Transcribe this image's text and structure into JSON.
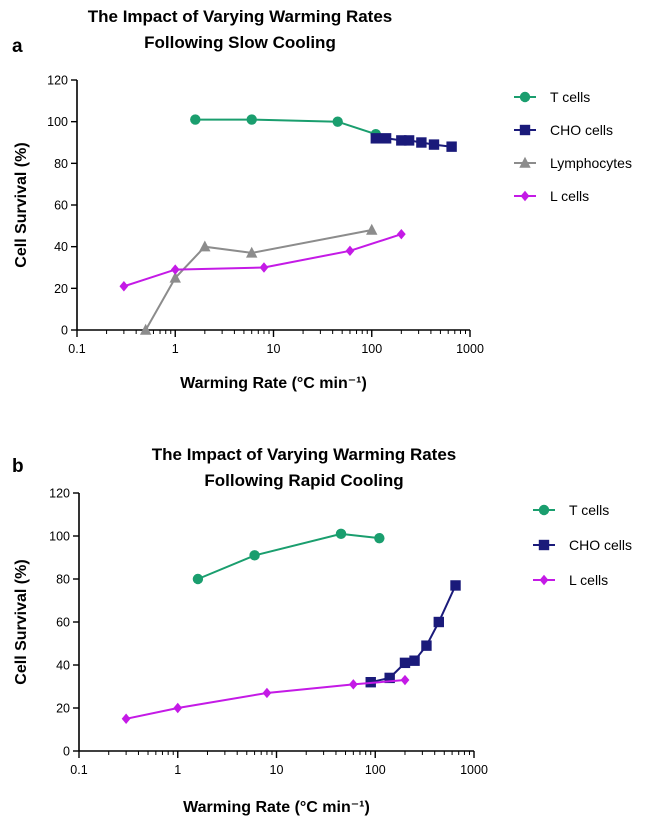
{
  "chart_data": [
    {
      "type": "line",
      "panel_label": "a",
      "title": [
        "The Impact of Varying Warming Rates",
        "Following Slow Cooling"
      ],
      "xlabel": "Warming Rate (°C min⁻¹)",
      "ylabel": "Cell Survival (%)",
      "xscale": "log",
      "xlim": [
        0.1,
        1000
      ],
      "ylim": [
        0,
        120
      ],
      "xticks": [
        0.1,
        1,
        10,
        100,
        1000
      ],
      "xtick_labels": [
        "0.1",
        "1",
        "10",
        "100",
        "1000"
      ],
      "yticks": [
        0,
        20,
        40,
        60,
        80,
        100,
        120
      ],
      "ytick_labels": [
        "0",
        "20",
        "40",
        "60",
        "80",
        "100",
        "120"
      ],
      "grid": false,
      "legend_position": "right",
      "series": [
        {
          "name": "T cells",
          "color": "#1a9e6e",
          "marker": "circle",
          "x": [
            1.6,
            6,
            45,
            110
          ],
          "y": [
            101,
            101,
            100,
            94
          ]
        },
        {
          "name": "CHO cells",
          "color": "#1a1a7a",
          "marker": "square",
          "x": [
            110,
            140,
            200,
            240,
            320,
            430,
            650
          ],
          "y": [
            92,
            92,
            91,
            91,
            90,
            89,
            88
          ]
        },
        {
          "name": "Lymphocytes",
          "color": "#8c8c8c",
          "marker": "triangle",
          "x": [
            0.5,
            1,
            2,
            6,
            100
          ],
          "y": [
            0,
            25,
            40,
            37,
            48
          ]
        },
        {
          "name": "L cells",
          "color": "#c41ae6",
          "marker": "diamond",
          "x": [
            0.3,
            1,
            8,
            60,
            200
          ],
          "y": [
            21,
            29,
            30,
            38,
            46
          ]
        }
      ]
    },
    {
      "type": "line",
      "panel_label": "b",
      "title": [
        "The Impact of Varying Warming Rates",
        "Following Rapid Cooling"
      ],
      "xlabel": "Warming Rate (°C min⁻¹)",
      "ylabel": "Cell Survival (%)",
      "xscale": "log",
      "xlim": [
        0.1,
        1000
      ],
      "ylim": [
        0,
        120
      ],
      "xticks": [
        0.1,
        1,
        10,
        100,
        1000
      ],
      "xtick_labels": [
        "0.1",
        "1",
        "10",
        "100",
        "1000"
      ],
      "yticks": [
        0,
        20,
        40,
        60,
        80,
        100,
        120
      ],
      "ytick_labels": [
        "0",
        "20",
        "40",
        "60",
        "80",
        "100",
        "120"
      ],
      "grid": false,
      "legend_position": "right",
      "series": [
        {
          "name": "T cells",
          "color": "#1a9e6e",
          "marker": "circle",
          "x": [
            1.6,
            6,
            45,
            110
          ],
          "y": [
            80,
            91,
            101,
            99
          ]
        },
        {
          "name": "CHO cells",
          "color": "#1a1a7a",
          "marker": "square",
          "x": [
            90,
            140,
            200,
            250,
            330,
            440,
            650
          ],
          "y": [
            32,
            34,
            41,
            42,
            49,
            60,
            77
          ]
        },
        {
          "name": "L cells",
          "color": "#c41ae6",
          "marker": "diamond",
          "x": [
            0.3,
            1,
            8,
            60,
            200
          ],
          "y": [
            15,
            20,
            27,
            31,
            33
          ]
        }
      ]
    }
  ]
}
